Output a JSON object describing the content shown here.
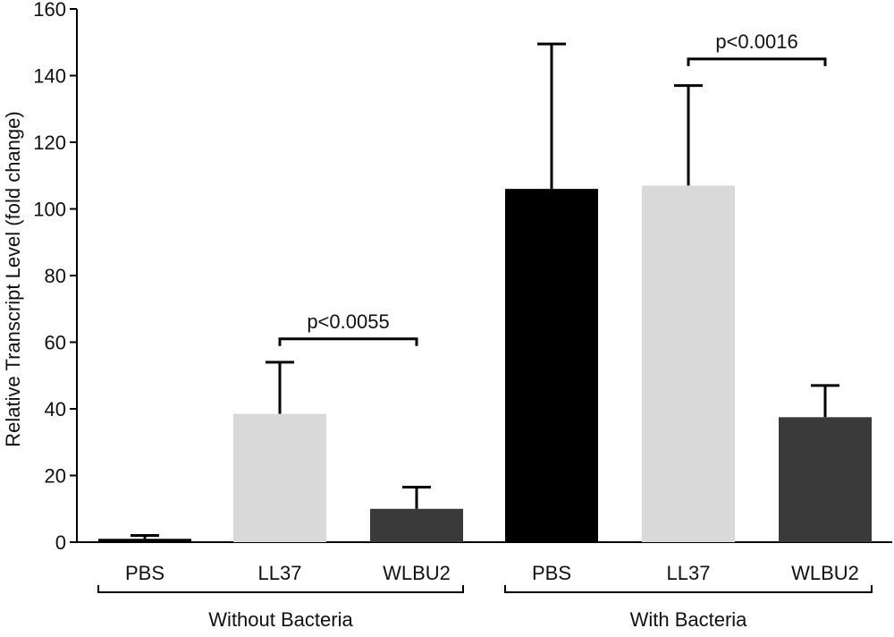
{
  "chart_data": {
    "type": "bar",
    "ylabel": "Relative Transcript Level (fold change)",
    "ylim": [
      0,
      160
    ],
    "yticks": [
      0,
      20,
      40,
      60,
      80,
      100,
      120,
      140,
      160
    ],
    "grid": false,
    "categories": [
      "PBS",
      "LL37",
      "WLBU2",
      "PBS",
      "LL37",
      "WLBU2"
    ],
    "groups": [
      {
        "label": "Without Bacteria",
        "start": 0,
        "end": 2
      },
      {
        "label": "With Bacteria",
        "start": 3,
        "end": 5
      }
    ],
    "values": [
      1,
      38.5,
      10,
      106,
      107,
      37.5
    ],
    "errors": [
      1,
      15.5,
      6.5,
      43.5,
      30,
      9.5
    ],
    "colors": [
      "#000000",
      "#d9d9d9",
      "#3a3a3a",
      "#000000",
      "#d9d9d9",
      "#3a3a3a"
    ],
    "significance": [
      {
        "label": "p<0.0055",
        "from": 1,
        "to": 2,
        "level": 61
      },
      {
        "label": "p<0.0016",
        "from": 4,
        "to": 5,
        "level": 145
      }
    ]
  }
}
